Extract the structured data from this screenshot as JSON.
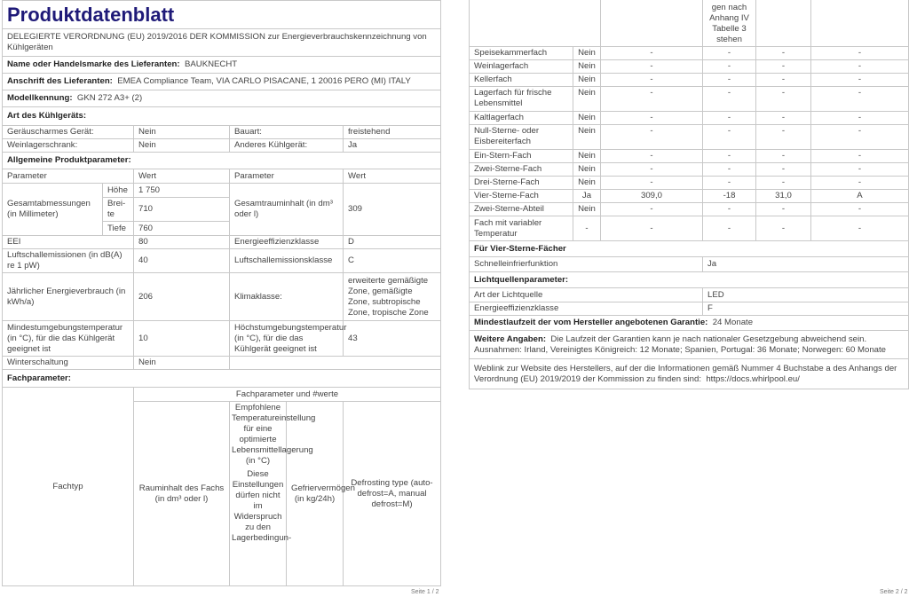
{
  "page1": {
    "title": "Produktdatenblatt",
    "regulation": "DELEGIERTE VERORDNUNG (EU) 2019/2016 DER KOMMISSION zur Energieverbrauchskennzeichnung von Kühlgeräten",
    "supplier_name_label": "Name oder Handelsmarke des Lieferanten:",
    "supplier_name": "BAUKNECHT",
    "supplier_address_label": "Anschrift des Lieferanten:",
    "supplier_address": "EMEA Compliance Team, VIA CARLO PISACANE, 1 20016 PERO (MI) ITALY",
    "model_label": "Modellkennung:",
    "model": "GKN 272 A3+ (2)",
    "type_heading": "Art des Kühlgeräts:",
    "low_noise_label": "Geräuscharmes Gerät:",
    "low_noise": "Nein",
    "design_label": "Bauart:",
    "design": "freistehend",
    "wine_label": "Weinlagerschrank:",
    "wine": "Nein",
    "other_label": "Anderes Kühlgerät:",
    "other": "Ja",
    "general_heading": "Allgemeine Produktparameter:",
    "col_parameter": "Parameter",
    "col_value": "Wert",
    "dimensions_label": "Gesamtabmessungen (in Millimeter)",
    "height_label": "Höhe",
    "height": "1 750",
    "width_label": "Brei-te",
    "width": "710",
    "depth_label": "Tiefe",
    "depth": "760",
    "volume_label": "Gesamtrauminhalt (in dm³ oder l)",
    "volume": "309",
    "eei_label": "EEI",
    "eei": "80",
    "energy_class_label": "Energieeffizienzklasse",
    "energy_class": "D",
    "noise_label": "Luftschallemissionen (in dB(A) re 1 pW)",
    "noise": "40",
    "noise_class_label": "Luftschallemissionsklasse",
    "noise_class": "C",
    "annual_energy_label": "Jährlicher Energieverbrauch (in kWh/a)",
    "annual_energy": "206",
    "climate_label": "Klimaklasse:",
    "climate": "erweiterte gemäßigte Zone, gemäßigte Zone, subtropische Zone, tropische Zone",
    "min_temp_label": "Mindestumgebungstemperatur (in °C), für die das Kühlgerät geeignet ist",
    "min_temp": "10",
    "max_temp_label": "Höchstumgebungstemperatur (in °C), für die das Kühlgerät geeignet ist",
    "max_temp": "43",
    "winter_label": "Winterschaltung",
    "winter": "Nein",
    "compartment_heading": "Fachparameter:",
    "compartment_type_header": "Fachtyp",
    "compartment_values_header": "Fachparameter und #werte",
    "comp_volume_header": "Rauminhalt des Fachs (in dm³ oder l)",
    "comp_temp_header": "Empfohlene Temperatureinstellung für eine optimierte Lebensmittellagerung (in °C)",
    "comp_temp_note": "Diese Einstellungen dürfen nicht im Widerspruch zu den Lagerbedingun-",
    "comp_freeze_header": "Gefriervermögen (in kg/24h)",
    "comp_defrost_header": "Defrosting type (auto-defrost=A, manual defrost=M)",
    "footer": "Seite 1 / 2"
  },
  "page2": {
    "continued_header": "gen nach Anhang IV Tabelle 3 stehen",
    "compartments": [
      {
        "type": "Speisekammerfach",
        "present": "Nein",
        "volume": "-",
        "temp": "-",
        "freeze": "-",
        "defrost": "-"
      },
      {
        "type": "Weinlagerfach",
        "present": "Nein",
        "volume": "-",
        "temp": "-",
        "freeze": "-",
        "defrost": "-"
      },
      {
        "type": "Kellerfach",
        "present": "Nein",
        "volume": "-",
        "temp": "-",
        "freeze": "-",
        "defrost": "-"
      },
      {
        "type": "Lagerfach für frische Lebensmittel",
        "present": "Nein",
        "volume": "-",
        "temp": "-",
        "freeze": "-",
        "defrost": "-"
      },
      {
        "type": "Kaltlagerfach",
        "present": "Nein",
        "volume": "-",
        "temp": "-",
        "freeze": "-",
        "defrost": "-"
      },
      {
        "type": "Null-Sterne- oder Eisbereiterfach",
        "present": "Nein",
        "volume": "-",
        "temp": "-",
        "freeze": "-",
        "defrost": "-"
      },
      {
        "type": "Ein-Stern-Fach",
        "present": "Nein",
        "volume": "-",
        "temp": "-",
        "freeze": "-",
        "defrost": "-"
      },
      {
        "type": "Zwei-Sterne-Fach",
        "present": "Nein",
        "volume": "-",
        "temp": "-",
        "freeze": "-",
        "defrost": "-"
      },
      {
        "type": "Drei-Sterne-Fach",
        "present": "Nein",
        "volume": "-",
        "temp": "-",
        "freeze": "-",
        "defrost": "-"
      },
      {
        "type": "Vier-Sterne-Fach",
        "present": "Ja",
        "volume": "309,0",
        "temp": "-18",
        "freeze": "31,0",
        "defrost": "A"
      },
      {
        "type": "Zwei-Sterne-Abteil",
        "present": "Nein",
        "volume": "-",
        "temp": "-",
        "freeze": "-",
        "defrost": "-"
      },
      {
        "type": "Fach mit variabler Temperatur",
        "present": "-",
        "volume": "-",
        "temp": "-",
        "freeze": "-",
        "defrost": "-"
      }
    ],
    "four_star_heading": "Für Vier-Sterne-Fächer",
    "fast_freeze_label": "Schnelleinfrierfunktion",
    "fast_freeze": "Ja",
    "light_heading": "Lichtquellenparameter:",
    "light_type_label": "Art der Lichtquelle",
    "light_type": "LED",
    "light_class_label": "Energieeffizienzklasse",
    "light_class": "F",
    "warranty_label": "Mindestlaufzeit der vom Hersteller angebotenen Garantie:",
    "warranty": "24 Monate",
    "more_info_label": "Weitere Angaben:",
    "more_info": "Die Laufzeit der Garantien kann je nach nationaler Gesetzgebung abweichend sein. Ausnahmen: Irland, Vereinigtes Königreich: 12 Monate; Spanien, Portugal: 36 Monate; Norwegen: 60 Monate",
    "weblink_text": "Weblink zur Website des Herstellers, auf der die Informationen gemäß Nummer 4 Buchstabe a des Anhangs der Verordnung (EU) 2019/2019 der Kommission zu finden sind:",
    "weblink_url": "https://docs.whirlpool.eu/",
    "footer": "Seite 2 / 2"
  }
}
